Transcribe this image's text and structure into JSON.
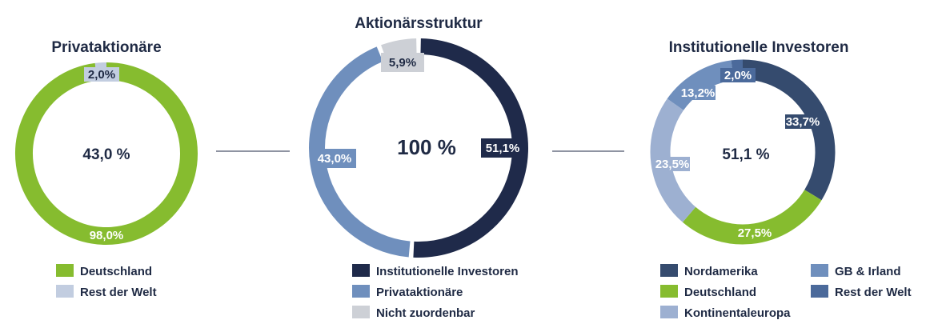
{
  "colors": {
    "navy": "#1f2a4a",
    "steel_blue": "#6f8fbd",
    "light_gray": "#cdd0d6",
    "green": "#86bc2f",
    "pale_blue": "#c2cde0",
    "slate_navy": "#354b6e",
    "periwinkle": "#9db0d1",
    "mid_blue": "#4b6a9b",
    "text_dark": "#1f2a44"
  },
  "chart_data": [
    {
      "type": "pie",
      "title": "Privataktionäre",
      "center_label": "43,0 %",
      "slices": [
        {
          "name": "Deutschland",
          "value": 98.0,
          "label": "98,0%",
          "color": "#86bc2f"
        },
        {
          "name": "Rest der Welt",
          "value": 2.0,
          "label": "2,0%",
          "color": "#c2cde0"
        }
      ],
      "legend": [
        "Deutschland",
        "Rest der Welt"
      ],
      "legend_position": "bottom"
    },
    {
      "type": "pie",
      "title": "Aktionärsstruktur",
      "center_label": "100 %",
      "slices": [
        {
          "name": "Institutionelle Investoren",
          "value": 51.1,
          "label": "51,1%",
          "color": "#1f2a4a"
        },
        {
          "name": "Privataktionäre",
          "value": 43.0,
          "label": "43,0%",
          "color": "#6f8fbd"
        },
        {
          "name": "Nicht zuordenbar",
          "value": 5.9,
          "label": "5,9%",
          "color": "#cdd0d6"
        }
      ],
      "legend": [
        "Institutionelle Investoren",
        "Privataktionäre",
        "Nicht zuordenbar"
      ],
      "legend_position": "bottom"
    },
    {
      "type": "pie",
      "title": "Institutionelle Investoren",
      "center_label": "51,1 %",
      "slices": [
        {
          "name": "Nordamerika",
          "value": 33.7,
          "label": "33,7%",
          "color": "#354b6e"
        },
        {
          "name": "Deutschland",
          "value": 27.5,
          "label": "27,5%",
          "color": "#86bc2f"
        },
        {
          "name": "Kontinentaleuropa",
          "value": 23.5,
          "label": "23,5%",
          "color": "#9db0d1"
        },
        {
          "name": "GB & Irland",
          "value": 13.2,
          "label": "13,2%",
          "color": "#6f8fbd"
        },
        {
          "name": "Rest der Welt",
          "value": 2.0,
          "label": "2,0%",
          "color": "#4b6a9b"
        }
      ],
      "legend": [
        "Nordamerika",
        "GB & Irland",
        "Deutschland",
        "Rest der Welt",
        "Kontinentaleuropa"
      ],
      "legend_position": "bottom"
    }
  ]
}
